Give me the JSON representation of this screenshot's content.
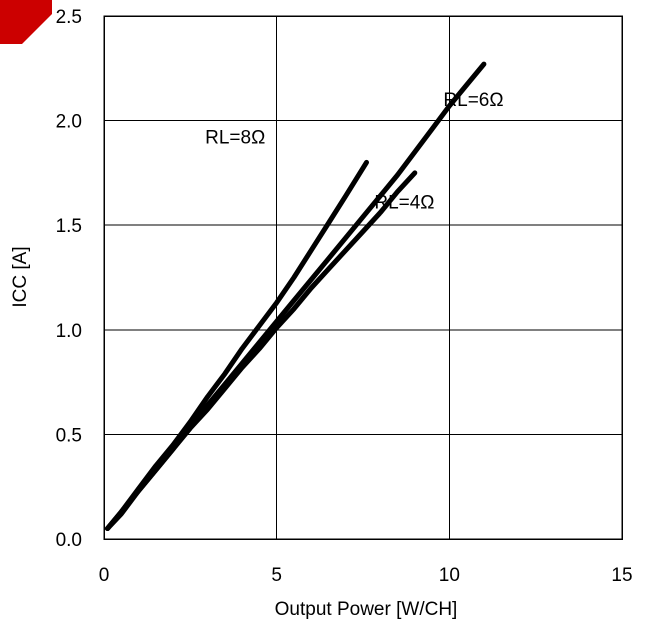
{
  "colors": {
    "line": "#000000",
    "grid": "#000000",
    "background": "#ffffff",
    "corner_mark": "#cc0000"
  },
  "chart_data": {
    "type": "line",
    "xlabel": "Output Power [W/CH]",
    "ylabel": "ICC [A]",
    "xlim": [
      0,
      15
    ],
    "ylim": [
      0,
      2.5
    ],
    "x_ticks": [
      0,
      5,
      10,
      15
    ],
    "x_tick_labels": [
      "0",
      "5",
      "10",
      "15"
    ],
    "y_ticks": [
      0,
      0.5,
      1.0,
      1.5,
      2.0,
      2.5
    ],
    "y_tick_labels": [
      "0.0",
      "0.5",
      "1.0",
      "1.5",
      "2.0",
      "2.5"
    ],
    "grid": true,
    "series": [
      {
        "name": "RL=8Ω",
        "x": [
          0.1,
          0.5,
          1.0,
          1.5,
          2.0,
          2.5,
          3.0,
          3.5,
          4.0,
          4.5,
          5.0,
          5.5,
          6.0,
          6.5,
          7.0,
          7.6
        ],
        "y": [
          0.05,
          0.13,
          0.24,
          0.35,
          0.45,
          0.56,
          0.68,
          0.79,
          0.91,
          1.02,
          1.13,
          1.25,
          1.38,
          1.51,
          1.64,
          1.8
        ]
      },
      {
        "name": "RL=6Ω",
        "x": [
          0.1,
          0.5,
          1.0,
          1.5,
          2.0,
          2.5,
          3.0,
          3.5,
          4.0,
          4.5,
          5.0,
          5.5,
          6.0,
          6.5,
          7.0,
          7.5,
          8.0,
          8.5,
          9.0,
          9.5,
          10.0,
          10.5,
          11.0
        ],
        "y": [
          0.05,
          0.12,
          0.23,
          0.33,
          0.43,
          0.54,
          0.64,
          0.74,
          0.84,
          0.94,
          1.04,
          1.14,
          1.24,
          1.34,
          1.44,
          1.54,
          1.64,
          1.74,
          1.85,
          1.96,
          2.07,
          2.17,
          2.27
        ]
      },
      {
        "name": "RL=4Ω",
        "x": [
          0.1,
          0.5,
          1.0,
          1.5,
          2.0,
          2.5,
          3.0,
          3.5,
          4.0,
          4.5,
          5.0,
          5.5,
          6.0,
          6.5,
          7.0,
          7.5,
          8.0,
          8.5,
          9.0
        ],
        "y": [
          0.05,
          0.13,
          0.23,
          0.33,
          0.43,
          0.53,
          0.62,
          0.72,
          0.82,
          0.91,
          1.01,
          1.1,
          1.2,
          1.29,
          1.38,
          1.47,
          1.56,
          1.66,
          1.75
        ]
      }
    ],
    "annotations": [
      {
        "text": "RL=8Ω",
        "x": 3.8,
        "y": 1.89
      },
      {
        "text": "RL=6Ω",
        "x": 10.7,
        "y": 2.07
      },
      {
        "text": "RL=4Ω",
        "x": 8.7,
        "y": 1.58
      }
    ]
  }
}
